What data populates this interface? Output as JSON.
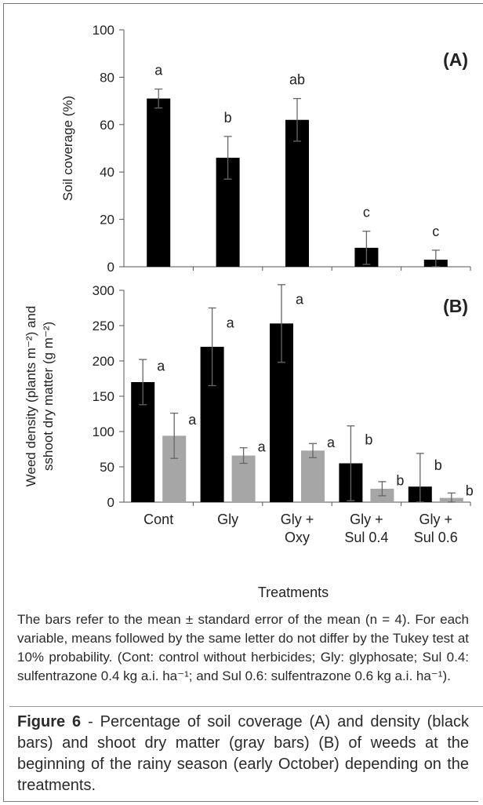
{
  "chart_data": [
    {
      "type": "bar",
      "panel_label": "(A)",
      "ylabel": "Soil coverage (%)",
      "ylim": [
        0,
        100
      ],
      "yticks": [
        0,
        20,
        40,
        60,
        80,
        100
      ],
      "categories": [
        "Cont",
        "Gly",
        "Gly + Oxy",
        "Gly + Sul 0.4",
        "Gly + Sul 0.6"
      ],
      "series": [
        {
          "color": "#000000",
          "values": [
            71,
            46,
            62,
            8,
            3
          ],
          "errors": [
            4,
            9,
            9,
            7,
            4
          ],
          "letters": [
            "a",
            "b",
            "ab",
            "c",
            "c"
          ]
        }
      ]
    },
    {
      "type": "bar",
      "panel_label": "(B)",
      "ylabel": "Weed density (plants m⁻²) and sshoot dry matter (g m⁻²)",
      "ylim": [
        0,
        300
      ],
      "yticks": [
        0,
        50,
        100,
        150,
        200,
        250,
        300
      ],
      "xlabel": "Treatments",
      "categories": [
        "Cont",
        "Gly",
        "Gly + Oxy",
        "Gly + Sul 0.4",
        "Gly + Sul 0.6"
      ],
      "series": [
        {
          "color": "#000000",
          "values": [
            170,
            220,
            253,
            55,
            22
          ],
          "errors": [
            32,
            55,
            55,
            53,
            47
          ],
          "letters": [
            "a",
            "a",
            "a",
            "b",
            "b"
          ]
        },
        {
          "color": "#a6a6a6",
          "values": [
            94,
            66,
            73,
            19,
            6
          ],
          "errors": [
            32,
            11,
            10,
            10,
            7
          ],
          "letters": [
            "a",
            "a",
            "a",
            "b",
            "b"
          ]
        }
      ]
    }
  ],
  "notes": {
    "text": "The bars refer to the mean ± standard error of the mean (n = 4). For each variable, means followed by the same letter do not differ by the Tukey test at 10% probability. (Cont: control without herbicides; Gly: glyphosate; Sul 0.4: sulfentrazone 0.4 kg a.i. ha⁻¹; and Sul 0.6: sulfentrazone 0.6 kg a.i. ha⁻¹)."
  },
  "figure_caption": {
    "label": "Figure 6",
    "text": " - Percentage of soil coverage (A) and density (black bars) and shoot dry matter (gray bars) (B) of weeds at the beginning of the rainy season (early October) depending on the treatments."
  }
}
